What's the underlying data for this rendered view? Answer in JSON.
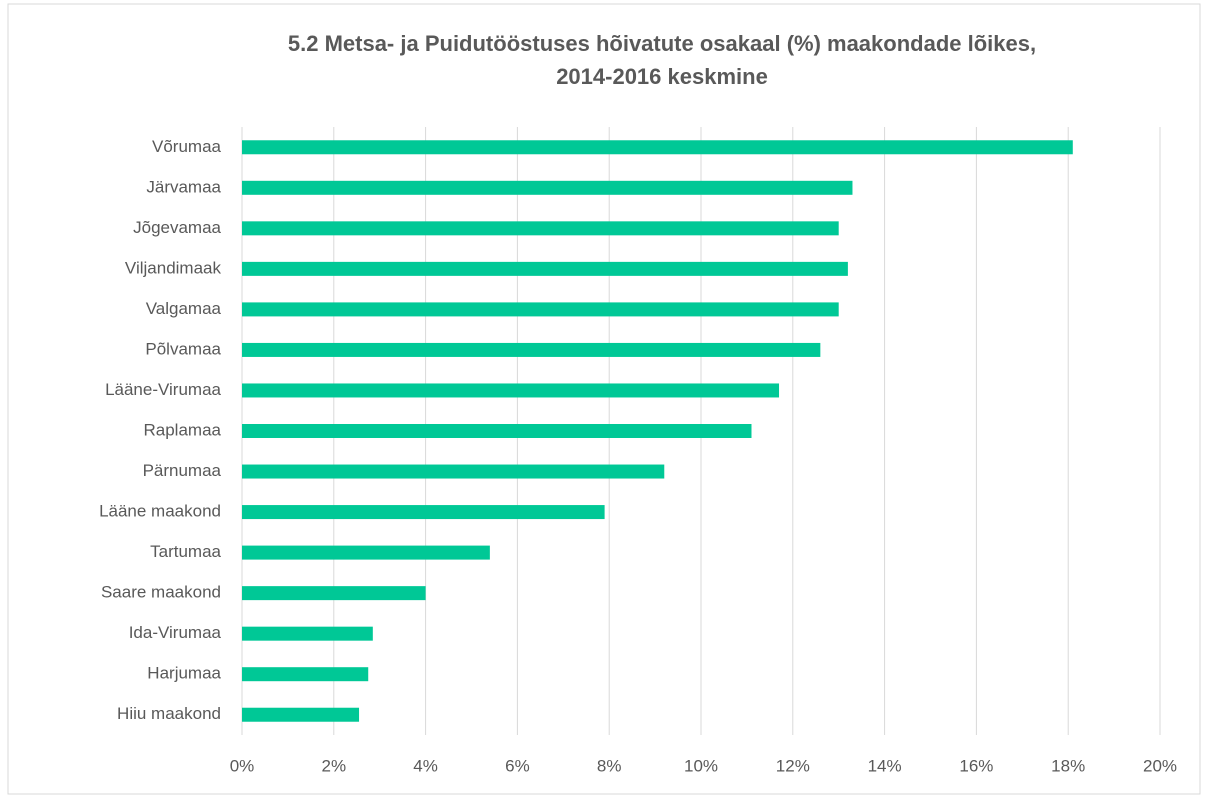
{
  "chart_data": {
    "type": "bar",
    "orientation": "horizontal",
    "title": [
      "5.2 Metsa- ja Puidutööstuses hõivatute osakaal (%) maakondade lõikes,",
      "2014-2016 keskmine"
    ],
    "categories": [
      "Võrumaa",
      "Järvamaa",
      "Jõgevamaa",
      "Viljandimaak",
      "Valgamaa",
      "Põlvamaa",
      "Lääne-Virumaa",
      "Raplamaa",
      "Pärnumaa",
      "Lääne maakond",
      "Tartumaa",
      "Saare maakond",
      "Ida-Virumaa",
      "Harjumaa",
      "Hiiu maakond"
    ],
    "values": [
      18.1,
      13.3,
      13.0,
      13.2,
      13.0,
      12.6,
      11.7,
      11.1,
      9.2,
      7.9,
      5.4,
      4.0,
      2.85,
      2.75,
      2.55
    ],
    "color": "#00c896",
    "xlim": [
      0,
      20
    ],
    "xticks": [
      {
        "value": 0,
        "label": "0%"
      },
      {
        "value": 2,
        "label": "2%"
      },
      {
        "value": 4,
        "label": "4%"
      },
      {
        "value": 6,
        "label": "6%"
      },
      {
        "value": 8,
        "label": "8%"
      },
      {
        "value": 10,
        "label": "10%"
      },
      {
        "value": 12,
        "label": "12%"
      },
      {
        "value": 14,
        "label": "14%"
      },
      {
        "value": 16,
        "label": "16%"
      },
      {
        "value": 18,
        "label": "18%"
      },
      {
        "value": 20,
        "label": "20%"
      }
    ],
    "grid": true
  }
}
